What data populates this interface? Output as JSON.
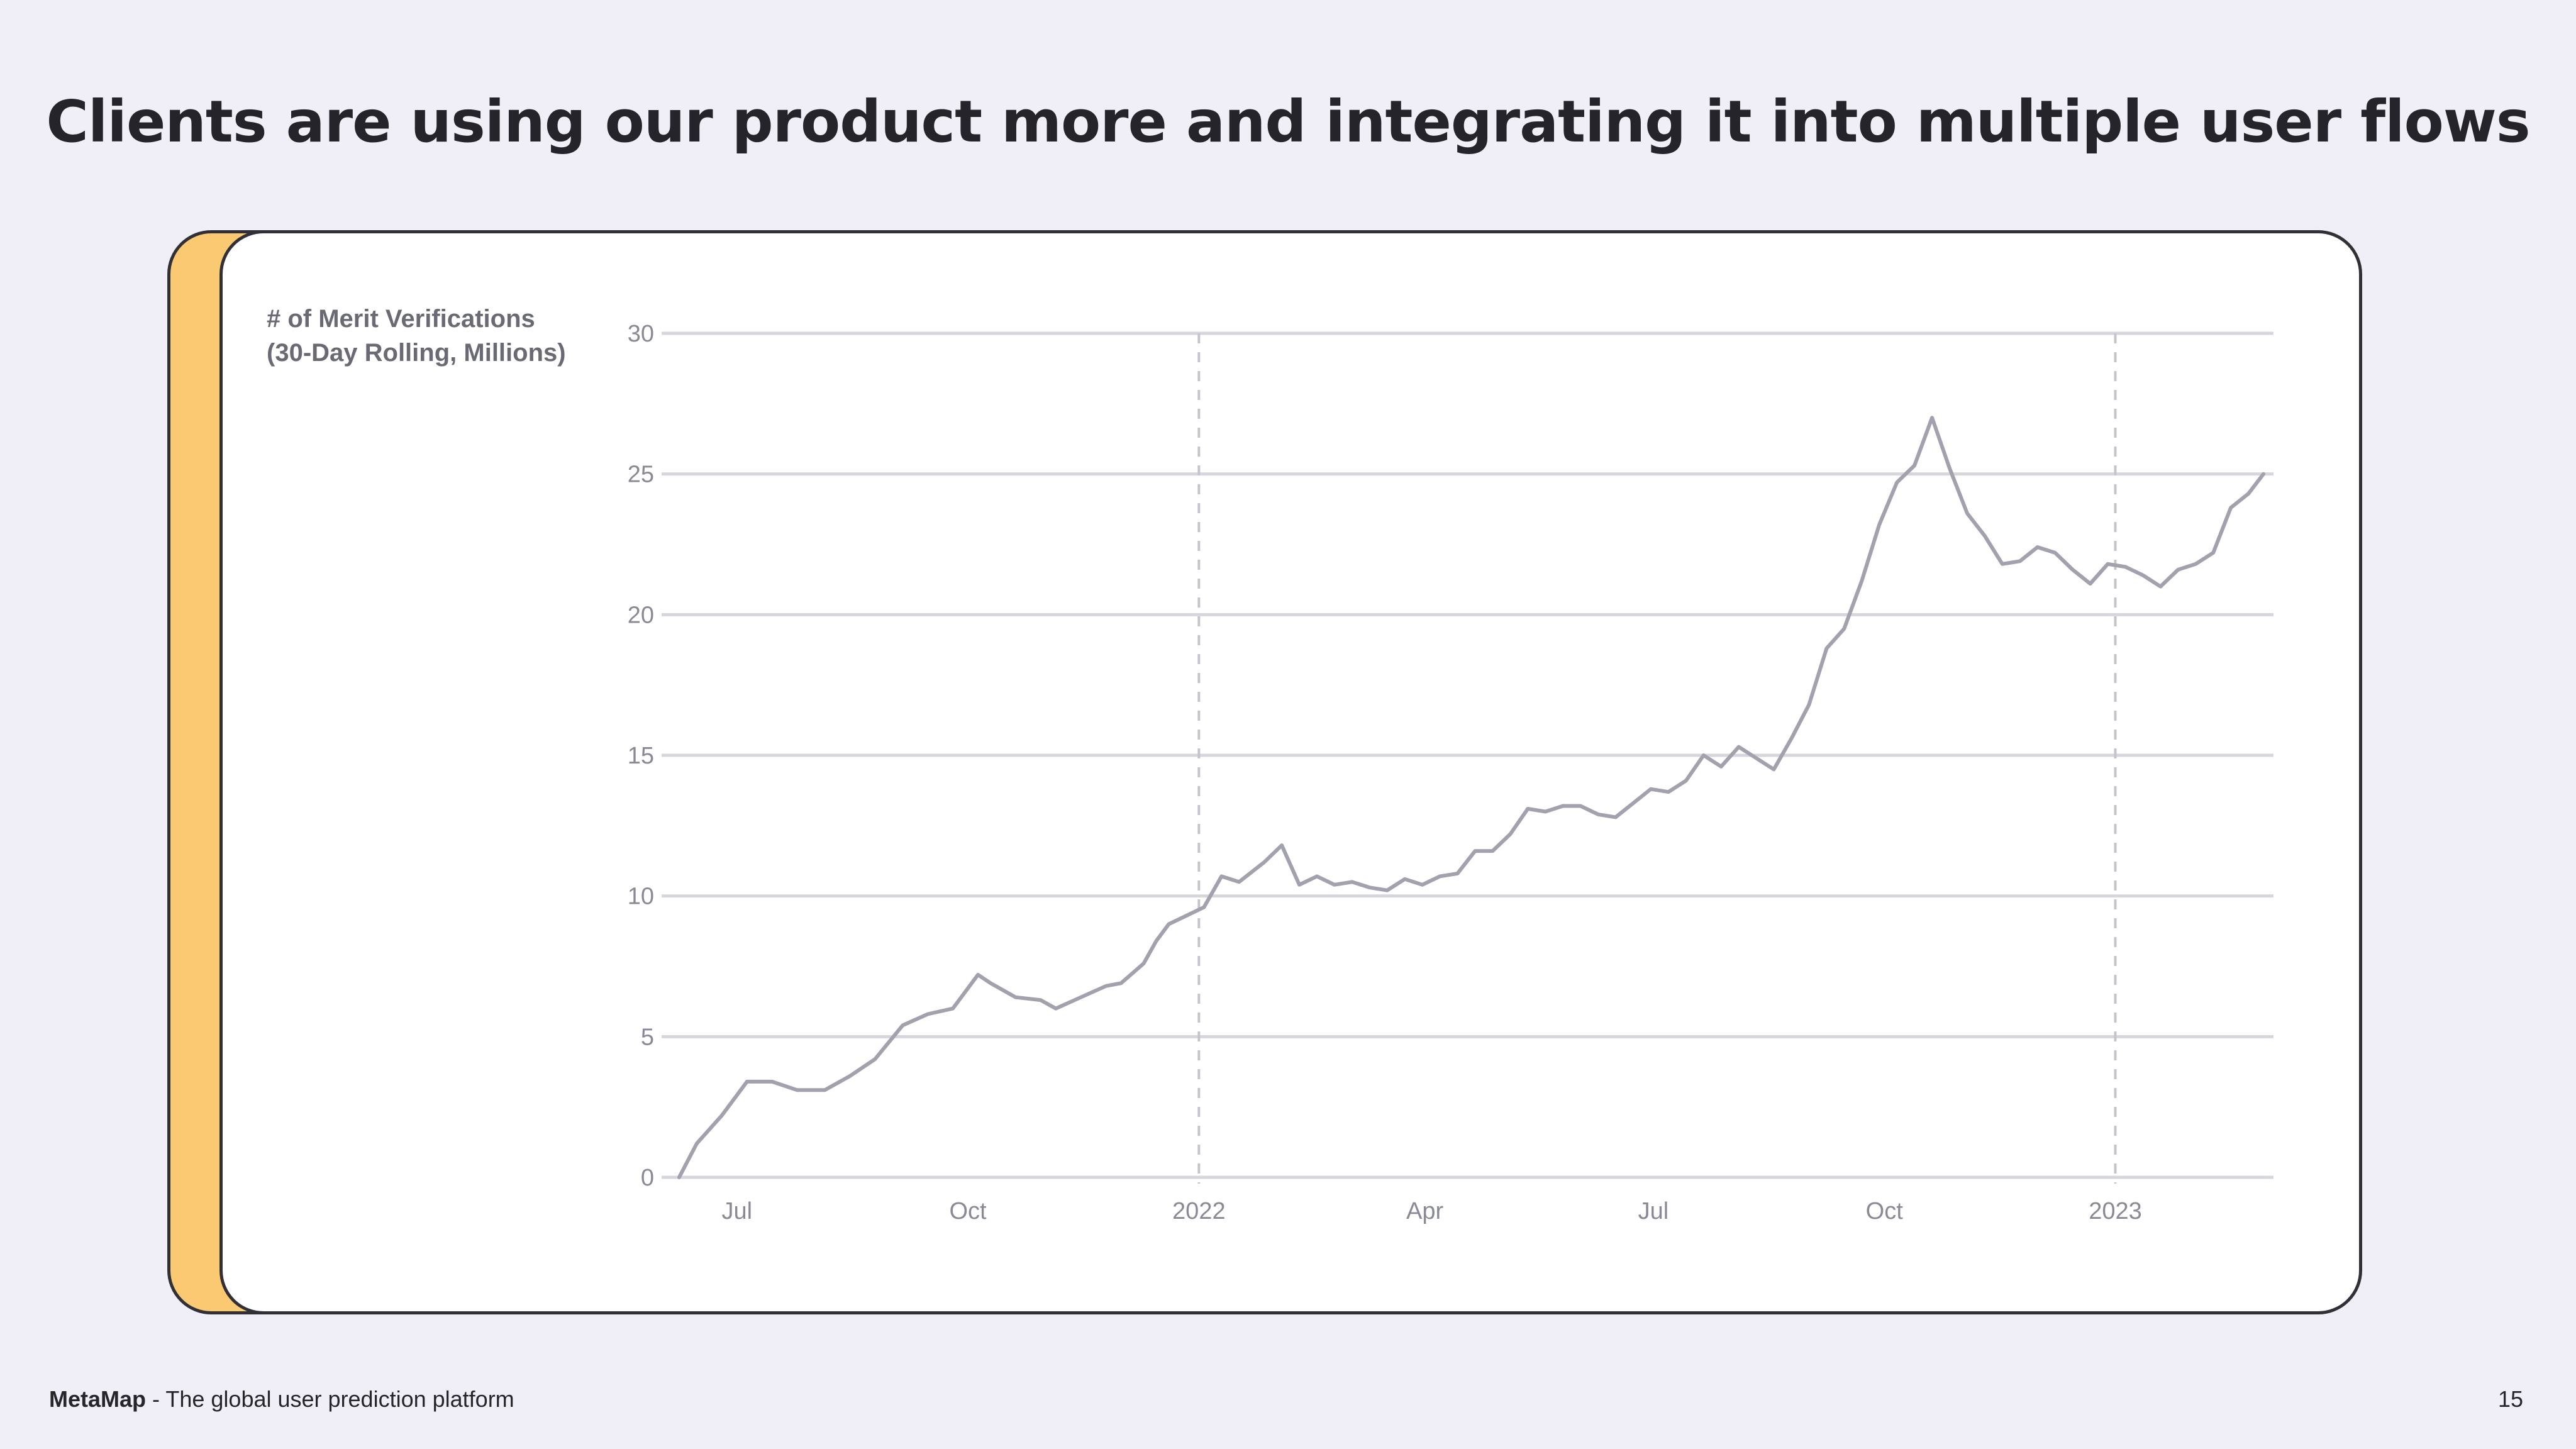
{
  "slide": {
    "title": "Clients are using our product more and integrating it into multiple user flows",
    "page_number": "15"
  },
  "footer": {
    "brand": "MetaMap",
    "tagline": " - The global user prediction platform"
  },
  "colors": {
    "background": "#f0eff8",
    "accent_card": "#fbc972",
    "line": "#a2a2ae",
    "grid": "#d6d6dc"
  },
  "chart_data": {
    "type": "line",
    "title": "",
    "ylabel_line1": "# of Merit Verifications",
    "ylabel_line2": "(30-Day Rolling, Millions)",
    "xlabel": "",
    "ylim": [
      0,
      30
    ],
    "yticks": [
      0,
      5,
      10,
      15,
      20,
      25,
      30
    ],
    "xlim": [
      "2021-06-01",
      "2023-03-05"
    ],
    "xticks": [
      {
        "label": "Jul",
        "date": "2021-07-01"
      },
      {
        "label": "Oct",
        "date": "2021-10-01"
      },
      {
        "label": "2022",
        "date": "2022-01-01"
      },
      {
        "label": "Apr",
        "date": "2022-04-01"
      },
      {
        "label": "Jul",
        "date": "2022-07-01"
      },
      {
        "label": "Oct",
        "date": "2022-10-01"
      },
      {
        "label": "2023",
        "date": "2023-01-01"
      }
    ],
    "year_markers": [
      "2022-01-01",
      "2023-01-01"
    ],
    "grid": "horizontal",
    "series": [
      {
        "x": [
          "2021-06-08",
          "2021-06-15",
          "2021-06-25",
          "2021-07-05",
          "2021-07-15",
          "2021-07-25",
          "2021-08-05",
          "2021-08-15",
          "2021-08-25",
          "2021-09-05",
          "2021-09-15",
          "2021-09-25",
          "2021-10-05",
          "2021-10-10",
          "2021-10-20",
          "2021-10-30",
          "2021-11-05",
          "2021-11-15",
          "2021-11-25",
          "2021-12-01",
          "2021-12-10",
          "2021-12-15",
          "2021-12-20",
          "2021-12-27",
          "2022-01-03",
          "2022-01-10",
          "2022-01-17",
          "2022-01-27",
          "2022-02-03",
          "2022-02-10",
          "2022-02-17",
          "2022-02-24",
          "2022-03-03",
          "2022-03-10",
          "2022-03-17",
          "2022-03-24",
          "2022-03-31",
          "2022-04-07",
          "2022-04-14",
          "2022-04-21",
          "2022-04-28",
          "2022-05-05",
          "2022-05-12",
          "2022-05-19",
          "2022-05-26",
          "2022-06-02",
          "2022-06-09",
          "2022-06-16",
          "2022-06-23",
          "2022-06-30",
          "2022-07-07",
          "2022-07-14",
          "2022-07-21",
          "2022-07-28",
          "2022-08-04",
          "2022-08-11",
          "2022-08-18",
          "2022-08-25",
          "2022-09-01",
          "2022-09-08",
          "2022-09-15",
          "2022-09-22",
          "2022-09-29",
          "2022-10-06",
          "2022-10-13",
          "2022-10-20",
          "2022-10-27",
          "2022-11-03",
          "2022-11-10",
          "2022-11-17",
          "2022-11-24",
          "2022-12-01",
          "2022-12-08",
          "2022-12-15",
          "2022-12-22",
          "2022-12-29",
          "2023-01-05",
          "2023-01-12",
          "2023-01-19",
          "2023-01-26",
          "2023-02-02",
          "2023-02-09",
          "2023-02-16",
          "2023-02-23",
          "2023-03-01"
        ],
        "values": [
          0,
          1.2,
          2.2,
          3.4,
          3.4,
          3.1,
          3.1,
          3.6,
          4.2,
          5.4,
          5.8,
          6.0,
          7.2,
          6.9,
          6.4,
          6.3,
          6.0,
          6.4,
          6.8,
          6.9,
          7.6,
          8.4,
          9.0,
          9.3,
          9.6,
          10.7,
          10.5,
          11.2,
          11.8,
          10.4,
          10.7,
          10.4,
          10.5,
          10.3,
          10.2,
          10.6,
          10.4,
          10.7,
          10.8,
          11.6,
          11.6,
          12.2,
          13.1,
          13.0,
          13.2,
          13.2,
          12.9,
          12.8,
          13.3,
          13.8,
          13.7,
          14.1,
          15.0,
          14.6,
          15.3,
          14.9,
          14.5,
          15.6,
          16.8,
          18.8,
          19.5,
          21.2,
          23.2,
          24.7,
          25.3,
          27.0,
          25.2,
          23.6,
          22.8,
          21.8,
          21.9,
          22.4,
          22.2,
          21.6,
          21.1,
          21.8,
          21.7,
          21.4,
          21.0,
          21.6,
          21.8,
          22.2,
          23.8,
          24.3,
          25.0
        ]
      }
    ]
  }
}
